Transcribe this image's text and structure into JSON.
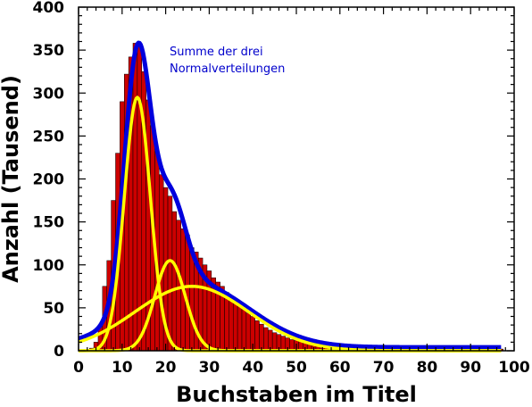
{
  "chart_data": {
    "type": "bar",
    "title": "",
    "xlabel": "Buchstaben im Titel",
    "ylabel": "Anzahl (Tausend)",
    "xlim": [
      0,
      100
    ],
    "ylim": [
      0,
      400
    ],
    "xticks": [
      "0",
      "10",
      "20",
      "30",
      "40",
      "50",
      "60",
      "70",
      "80",
      "90",
      "100"
    ],
    "yticks": [
      "0",
      "50",
      "100",
      "150",
      "200",
      "250",
      "300",
      "350",
      "400"
    ],
    "grid": false,
    "legend": "none",
    "annotation": {
      "lines": [
        "Summe der drei",
        "Normalverteilungen"
      ],
      "color": "#0000cc"
    },
    "bar_color": "#cc0000",
    "bar_edge_color": "#000000",
    "bars": {
      "x": [
        1,
        2,
        3,
        4,
        5,
        6,
        7,
        8,
        9,
        10,
        11,
        12,
        13,
        14,
        15,
        16,
        17,
        18,
        19,
        20,
        21,
        22,
        23,
        24,
        25,
        26,
        27,
        28,
        29,
        30,
        31,
        32,
        33,
        34,
        35,
        36,
        37,
        38,
        39,
        40,
        41,
        42,
        43,
        44,
        45,
        46,
        47,
        48,
        49,
        50,
        51,
        52,
        53,
        54,
        55,
        56,
        57,
        58,
        59,
        60,
        61,
        62,
        63,
        64,
        65,
        66,
        67,
        68,
        69,
        70,
        71,
        72,
        73,
        74,
        75,
        76,
        77,
        78,
        79,
        80,
        81,
        82,
        83,
        84,
        85,
        86,
        87,
        88,
        89,
        90,
        91,
        92,
        93,
        94,
        95,
        96,
        97
      ],
      "values": [
        0,
        0,
        3,
        10,
        30,
        75,
        105,
        175,
        230,
        290,
        322,
        342,
        358,
        355,
        325,
        292,
        262,
        232,
        205,
        190,
        180,
        162,
        152,
        142,
        135,
        120,
        115,
        108,
        100,
        93,
        85,
        80,
        75,
        68,
        63,
        58,
        52,
        48,
        44,
        40,
        35,
        31,
        27,
        24,
        21,
        19,
        17,
        15,
        13,
        12,
        11,
        10,
        9,
        8,
        7,
        7,
        6,
        5,
        5,
        4,
        4,
        4,
        4,
        3,
        3,
        3,
        3,
        3,
        3,
        3,
        2,
        2,
        2,
        2,
        2,
        2,
        2,
        2,
        2,
        2,
        2,
        2,
        2,
        2,
        2,
        2,
        2,
        2,
        2,
        2,
        2,
        2,
        2,
        2,
        2,
        2,
        2
      ]
    },
    "series": [
      {
        "color": "#ffff00",
        "mean": 13.5,
        "sd": 3.0,
        "peak": 295
      },
      {
        "color": "#ffff00",
        "mean": 21.0,
        "sd": 3.5,
        "peak": 105
      },
      {
        "color": "#ffff00",
        "mean": 26.0,
        "sd": 13.0,
        "peak": 75
      }
    ],
    "sum_curve": {
      "color": "#0000dd"
    }
  }
}
